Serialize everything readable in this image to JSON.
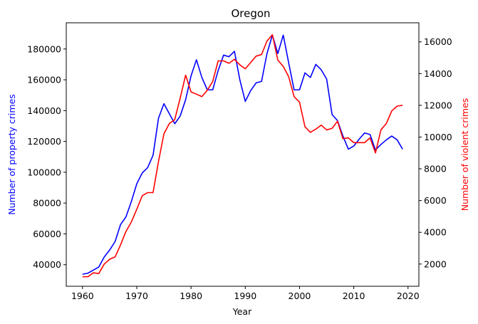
{
  "chart_data": {
    "type": "line",
    "title": "Oregon",
    "xlabel": "Year",
    "ylabel_left": "Number of property crimes",
    "ylabel_right": "Number of violent crimes",
    "xlim": [
      1957,
      2022
    ],
    "ylim_left": [
      26000,
      197000
    ],
    "ylim_right": [
      600,
      17200
    ],
    "x_ticks": [
      1960,
      1970,
      1980,
      1990,
      2000,
      2010,
      2020
    ],
    "y_ticks_left": [
      40000,
      60000,
      80000,
      100000,
      120000,
      140000,
      160000,
      180000
    ],
    "y_ticks_right": [
      2000,
      4000,
      6000,
      8000,
      10000,
      12000,
      14000,
      16000
    ],
    "grid": false,
    "colors": {
      "left": "#0000ff",
      "right": "#ff0000",
      "axis": "#000000"
    },
    "x": [
      1960,
      1961,
      1962,
      1963,
      1964,
      1965,
      1966,
      1967,
      1968,
      1969,
      1970,
      1971,
      1972,
      1973,
      1974,
      1975,
      1976,
      1977,
      1978,
      1979,
      1980,
      1981,
      1982,
      1983,
      1984,
      1985,
      1986,
      1987,
      1988,
      1989,
      1990,
      1991,
      1992,
      1993,
      1994,
      1995,
      1996,
      1997,
      1998,
      1999,
      2000,
      2001,
      2002,
      2003,
      2004,
      2005,
      2006,
      2007,
      2008,
      2009,
      2010,
      2011,
      2012,
      2013,
      2014,
      2015,
      2016,
      2017,
      2018,
      2019
    ],
    "series": [
      {
        "axis": "left",
        "color": "#0000ff",
        "values": [
          33800,
          34500,
          36500,
          38500,
          45000,
          49500,
          55000,
          66000,
          71000,
          81000,
          92500,
          99500,
          103000,
          111000,
          135000,
          144500,
          138000,
          131500,
          136500,
          147000,
          162500,
          173000,
          161500,
          153500,
          153500,
          166000,
          176000,
          175000,
          178500,
          160000,
          146000,
          153000,
          158000,
          159000,
          177000,
          189000,
          177000,
          189000,
          171000,
          153500,
          153500,
          164500,
          161500,
          170000,
          166500,
          160500,
          137500,
          133500,
          123500,
          115000,
          117000,
          121500,
          125500,
          124500,
          114500,
          118000,
          121000,
          123500,
          121000,
          115000
        ]
      },
      {
        "axis": "right",
        "color": "#ff0000",
        "values": [
          1200,
          1200,
          1450,
          1400,
          2000,
          2300,
          2450,
          3200,
          4050,
          4650,
          5450,
          6300,
          6500,
          6500,
          8450,
          10200,
          10850,
          11100,
          12450,
          13900,
          12850,
          12700,
          12550,
          12950,
          13500,
          14800,
          14800,
          14650,
          14900,
          14550,
          14300,
          14700,
          15100,
          15200,
          16050,
          16450,
          14850,
          14450,
          13800,
          12550,
          12200,
          10650,
          10300,
          10500,
          10750,
          10450,
          10550,
          11000,
          9900,
          9950,
          9650,
          9650,
          9650,
          9950,
          9000,
          10450,
          10850,
          11650,
          11950,
          12000
        ]
      }
    ]
  }
}
